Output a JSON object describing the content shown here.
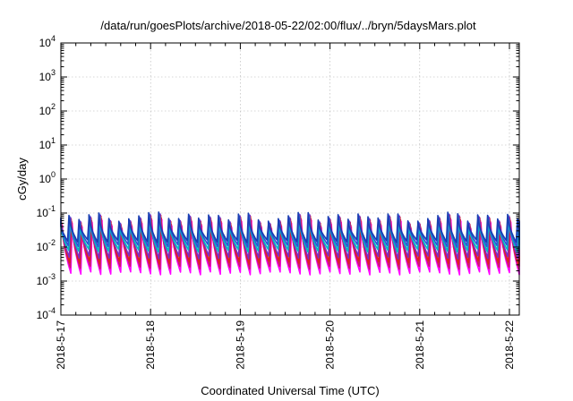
{
  "chart_data": {
    "type": "line",
    "title": "/data/run/goesPlots/archive/2018-05-22/02:00/flux/../bryn/5daysMars.plot",
    "xlabel": "Coordinated Universal Time (UTC)",
    "ylabel": "cGy/day",
    "yscale": "log",
    "ylim": [
      0.0001,
      10000
    ],
    "xlim_days": [
      "2018-5-17",
      "2018-5-22 01:00"
    ],
    "grid": true,
    "x_tick_labels": [
      "2018-5-17",
      "2018-5-18",
      "2018-5-19",
      "2018-5-20",
      "2018-5-21",
      "2018-5-22"
    ],
    "y_ticks": [
      {
        "base": "10",
        "exp": "-4",
        "value": 0.0001
      },
      {
        "base": "10",
        "exp": "-3",
        "value": 0.001
      },
      {
        "base": "10",
        "exp": "-2",
        "value": 0.01
      },
      {
        "base": "10",
        "exp": "-1",
        "value": 0.1
      },
      {
        "base": "10",
        "exp": "0",
        "value": 1
      },
      {
        "base": "10",
        "exp": "1",
        "value": 10
      },
      {
        "base": "10",
        "exp": "2",
        "value": 100
      },
      {
        "base": "10",
        "exp": "3",
        "value": 1000
      },
      {
        "base": "10",
        "exp": "4",
        "value": 10000
      }
    ],
    "pattern": {
      "description_note": "sawtooth oscillation, roughly 9 cycles per day",
      "cycles_per_day": 9,
      "peak_value_range": [
        0.03,
        0.09
      ],
      "trough_value_range": [
        0.0015,
        0.02
      ]
    },
    "series": [
      {
        "color": "#ff00ff",
        "peak": 0.045,
        "trough": 0.0017
      },
      {
        "color": "#cc1f66",
        "peak": 0.05,
        "trough": 0.0025
      },
      {
        "color": "#e02020",
        "peak": 0.06,
        "trough": 0.0035
      },
      {
        "color": "#7a2ec8",
        "peak": 0.065,
        "trough": 0.005
      },
      {
        "color": "#00bfbf",
        "peak": 0.055,
        "trough": 0.008
      },
      {
        "color": "#2b55d6",
        "peak": 0.07,
        "trough": 0.011
      },
      {
        "color": "#1a3fb0",
        "peak": 0.075,
        "trough": 0.015
      }
    ]
  }
}
